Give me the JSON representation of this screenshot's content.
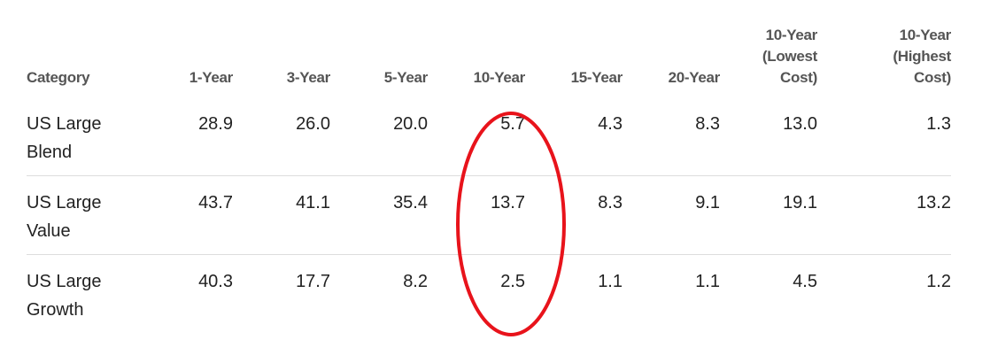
{
  "table": {
    "columns": [
      "Category",
      "1-Year",
      "3-Year",
      "5-Year",
      "10-Year",
      "15-Year",
      "20-Year",
      "10-Year (Lowest Cost)",
      "10-Year (Highest Cost)"
    ],
    "rows": [
      [
        "US Large Blend",
        "28.9",
        "26.0",
        "20.0",
        "5.7",
        "4.3",
        "8.3",
        "13.0",
        "1.3"
      ],
      [
        "US Large Value",
        "43.7",
        "41.1",
        "35.4",
        "13.7",
        "8.3",
        "9.1",
        "19.1",
        "13.2"
      ],
      [
        "US Large Growth",
        "40.3",
        "17.7",
        "8.2",
        "2.5",
        "1.1",
        "1.1",
        "4.5",
        "1.2"
      ]
    ]
  }
}
